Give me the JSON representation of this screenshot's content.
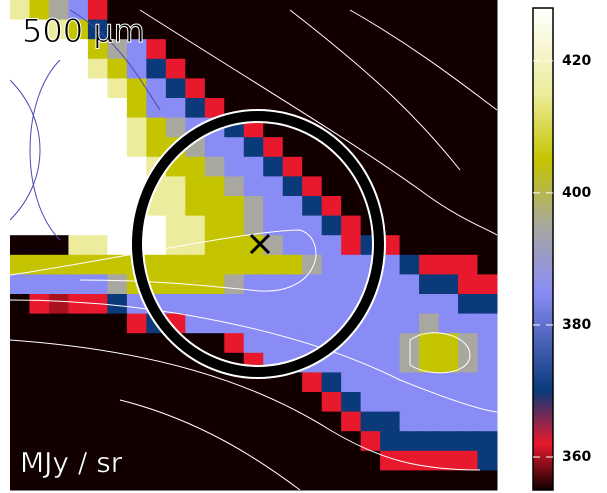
{
  "chart_data": {
    "type": "heatmap",
    "title": "500 μm",
    "units_label": "MJy / sr",
    "zlim": [
      355,
      428
    ],
    "zticks": [
      360,
      380,
      400,
      420
    ],
    "colormap": [
      [
        355,
        "#120000"
      ],
      [
        362,
        "#e8192c"
      ],
      [
        370,
        "#0a3a7a"
      ],
      [
        385,
        "#8a8cf5"
      ],
      [
        395,
        "#a8a8a0"
      ],
      [
        405,
        "#c4c400"
      ],
      [
        415,
        "#ecec9c"
      ],
      [
        428,
        "#ffffff"
      ]
    ],
    "z": [
      [
        415,
        405,
        395,
        385,
        362,
        355,
        355,
        355,
        355,
        355,
        355,
        355,
        355,
        355,
        355,
        355,
        355,
        355,
        355,
        355,
        355,
        355,
        355,
        355,
        355
      ],
      [
        428,
        428,
        415,
        405,
        370,
        355,
        355,
        355,
        355,
        355,
        355,
        355,
        355,
        355,
        355,
        355,
        355,
        355,
        355,
        355,
        355,
        355,
        355,
        355,
        355
      ],
      [
        428,
        428,
        428,
        428,
        405,
        395,
        385,
        362,
        355,
        355,
        355,
        355,
        355,
        355,
        355,
        355,
        355,
        355,
        355,
        355,
        355,
        355,
        355,
        355,
        355
      ],
      [
        428,
        428,
        428,
        428,
        415,
        405,
        385,
        370,
        362,
        355,
        355,
        355,
        355,
        355,
        355,
        355,
        355,
        355,
        355,
        355,
        355,
        355,
        355,
        355,
        355
      ],
      [
        428,
        428,
        428,
        428,
        428,
        415,
        405,
        385,
        370,
        362,
        355,
        355,
        355,
        355,
        355,
        355,
        355,
        355,
        355,
        355,
        355,
        355,
        355,
        355,
        355
      ],
      [
        428,
        428,
        428,
        428,
        428,
        428,
        405,
        385,
        385,
        370,
        362,
        355,
        355,
        355,
        355,
        355,
        355,
        355,
        355,
        355,
        355,
        355,
        355,
        355,
        355
      ],
      [
        428,
        428,
        428,
        428,
        428,
        428,
        415,
        405,
        395,
        385,
        385,
        370,
        362,
        355,
        355,
        355,
        355,
        355,
        355,
        355,
        355,
        355,
        355,
        355,
        355
      ],
      [
        428,
        428,
        428,
        428,
        428,
        428,
        415,
        405,
        405,
        395,
        385,
        385,
        370,
        362,
        355,
        355,
        355,
        355,
        355,
        355,
        355,
        355,
        355,
        355,
        355
      ],
      [
        428,
        428,
        428,
        428,
        428,
        428,
        428,
        415,
        405,
        405,
        395,
        385,
        385,
        370,
        362,
        355,
        355,
        355,
        355,
        355,
        355,
        355,
        355,
        355,
        355
      ],
      [
        428,
        428,
        428,
        428,
        428,
        428,
        428,
        415,
        415,
        405,
        405,
        395,
        385,
        385,
        370,
        362,
        355,
        355,
        355,
        355,
        355,
        355,
        355,
        355,
        355
      ],
      [
        428,
        428,
        428,
        428,
        428,
        428,
        428,
        415,
        415,
        405,
        405,
        405,
        395,
        385,
        385,
        370,
        362,
        355,
        355,
        355,
        355,
        355,
        355,
        355,
        355
      ],
      [
        428,
        428,
        428,
        428,
        428,
        428,
        428,
        428,
        415,
        415,
        405,
        405,
        395,
        385,
        385,
        385,
        370,
        362,
        355,
        355,
        355,
        355,
        355,
        355,
        355
      ],
      [
        355,
        355,
        355,
        415,
        415,
        428,
        428,
        428,
        415,
        415,
        405,
        405,
        405,
        395,
        385,
        385,
        385,
        362,
        370,
        362,
        355,
        355,
        355,
        355,
        355
      ],
      [
        405,
        405,
        405,
        405,
        405,
        405,
        405,
        405,
        405,
        405,
        405,
        405,
        405,
        405,
        405,
        395,
        385,
        385,
        385,
        385,
        370,
        362,
        362,
        362,
        355
      ],
      [
        385,
        385,
        385,
        385,
        385,
        395,
        405,
        405,
        405,
        405,
        405,
        395,
        385,
        385,
        385,
        385,
        385,
        385,
        385,
        385,
        385,
        370,
        370,
        362,
        362
      ],
      [
        355,
        362,
        360,
        362,
        362,
        370,
        385,
        385,
        385,
        385,
        385,
        385,
        385,
        385,
        385,
        385,
        385,
        385,
        385,
        385,
        385,
        385,
        385,
        370,
        370
      ],
      [
        355,
        355,
        355,
        355,
        355,
        355,
        362,
        370,
        362,
        385,
        385,
        385,
        385,
        385,
        385,
        385,
        385,
        385,
        385,
        385,
        385,
        395,
        385,
        385,
        385
      ],
      [
        355,
        355,
        355,
        355,
        355,
        355,
        355,
        355,
        355,
        355,
        355,
        362,
        385,
        385,
        385,
        385,
        385,
        385,
        385,
        385,
        395,
        405,
        405,
        395,
        385
      ],
      [
        355,
        355,
        355,
        355,
        355,
        355,
        355,
        355,
        355,
        355,
        355,
        355,
        362,
        385,
        385,
        385,
        385,
        385,
        385,
        385,
        395,
        405,
        405,
        395,
        385
      ],
      [
        355,
        355,
        355,
        355,
        355,
        355,
        355,
        355,
        355,
        355,
        355,
        355,
        355,
        355,
        355,
        362,
        370,
        385,
        385,
        385,
        385,
        385,
        385,
        385,
        385
      ],
      [
        355,
        355,
        355,
        355,
        355,
        355,
        355,
        355,
        355,
        355,
        355,
        355,
        355,
        355,
        355,
        355,
        362,
        370,
        385,
        385,
        385,
        385,
        385,
        385,
        385
      ],
      [
        355,
        355,
        355,
        355,
        355,
        355,
        355,
        355,
        355,
        355,
        355,
        355,
        355,
        355,
        355,
        355,
        355,
        362,
        370,
        370,
        385,
        385,
        385,
        385,
        385
      ],
      [
        355,
        355,
        355,
        355,
        355,
        355,
        355,
        355,
        355,
        355,
        355,
        355,
        355,
        355,
        355,
        355,
        355,
        355,
        362,
        370,
        370,
        370,
        370,
        370,
        370
      ],
      [
        355,
        355,
        355,
        355,
        355,
        355,
        355,
        355,
        355,
        355,
        355,
        355,
        355,
        355,
        355,
        355,
        355,
        355,
        355,
        362,
        362,
        362,
        362,
        362,
        370
      ],
      [
        355,
        355,
        355,
        355,
        355,
        355,
        355,
        355,
        355,
        355,
        355,
        355,
        355,
        355,
        355,
        355,
        355,
        355,
        355,
        355,
        355,
        355,
        355,
        355,
        355
      ]
    ]
  }
}
